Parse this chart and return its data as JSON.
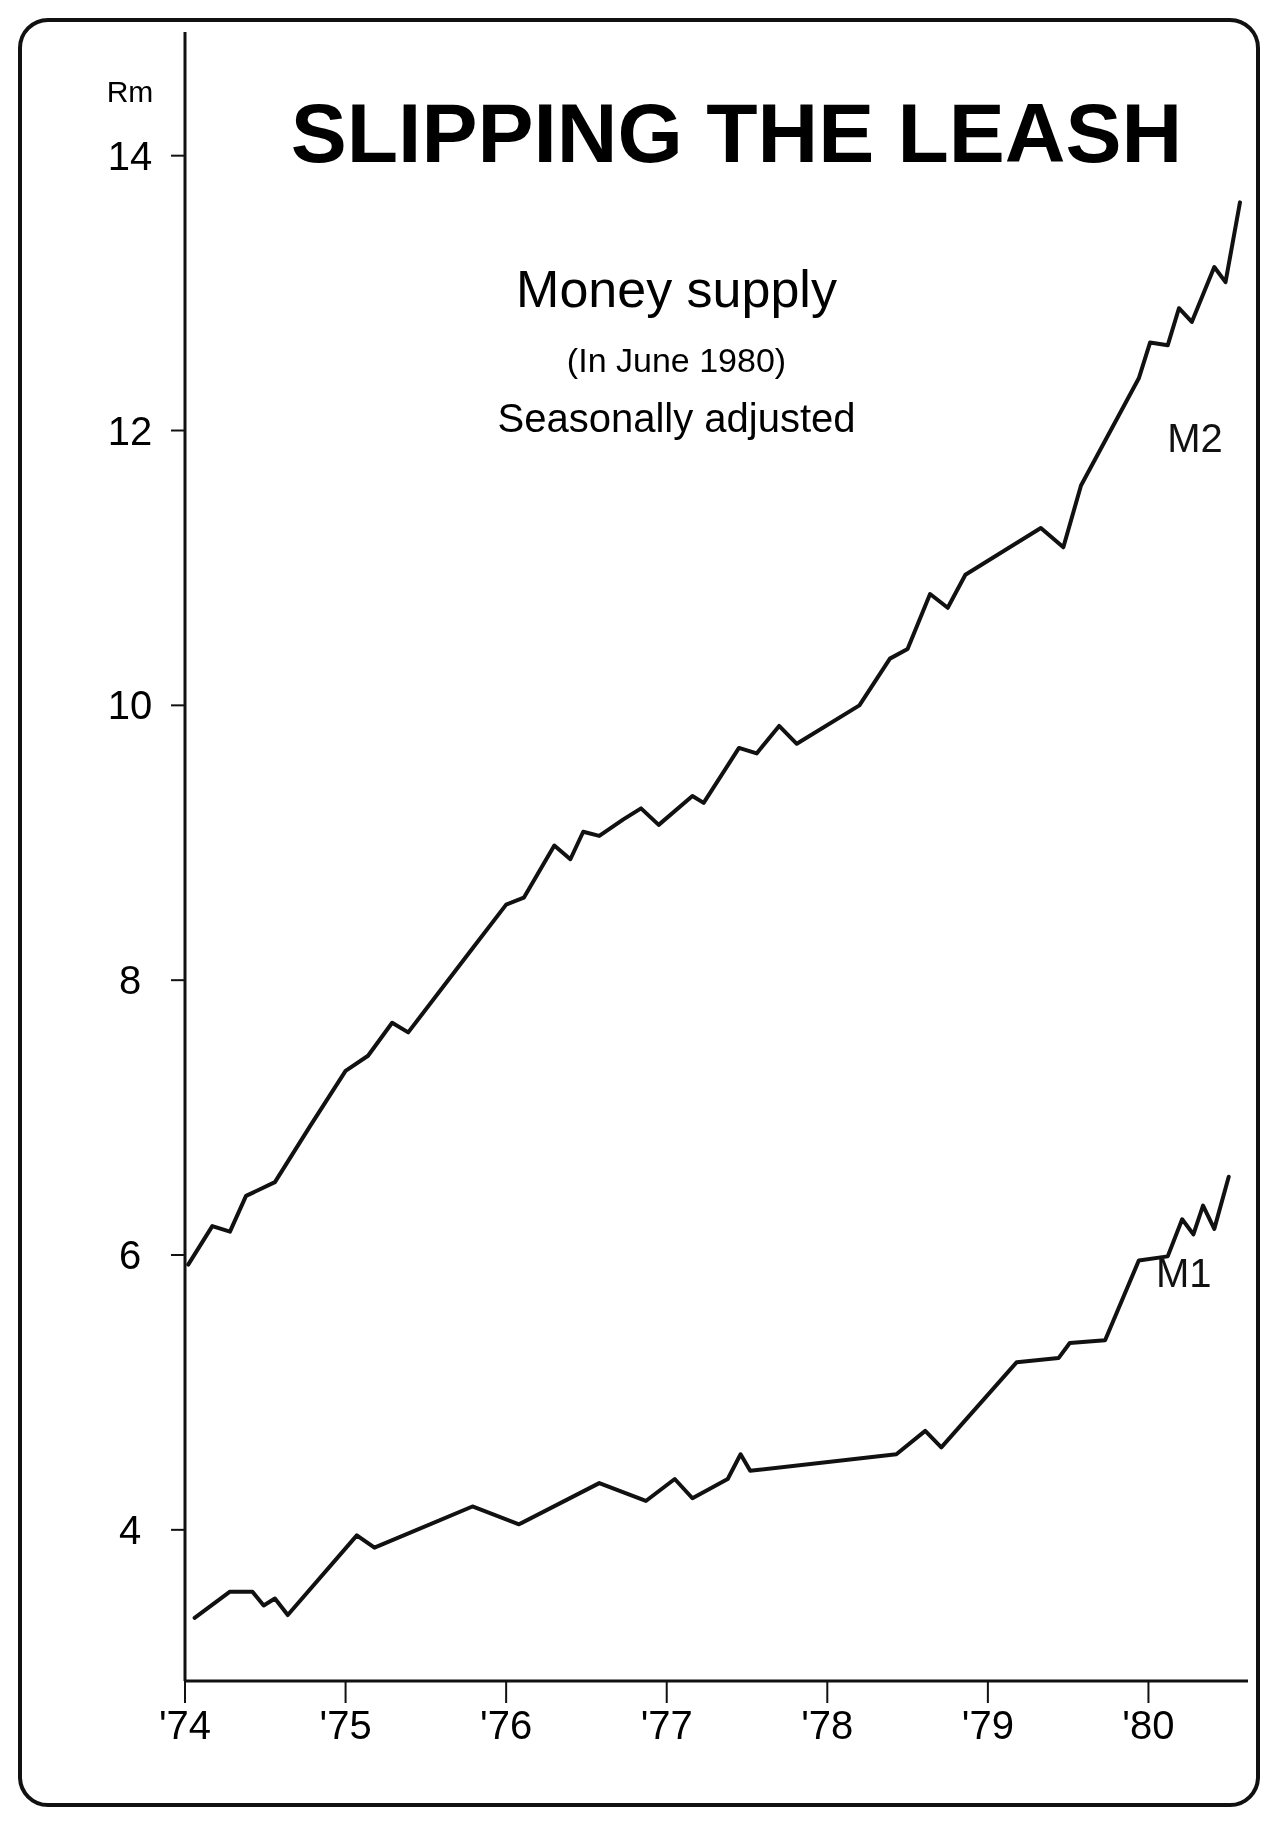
{
  "chart_data": {
    "type": "line",
    "title": "SLIPPING THE LEASH",
    "subtitle": "Money supply",
    "ylabel": "Rm",
    "annotations": [
      "(In June 1980)",
      "Seasonally adjusted"
    ],
    "xlim": [
      1974,
      1980.62
    ],
    "xticks": [
      {
        "value": 1974,
        "label": "'74"
      },
      {
        "value": 1975,
        "label": "'75"
      },
      {
        "value": 1976,
        "label": "'76"
      },
      {
        "value": 1977,
        "label": "'77"
      },
      {
        "value": 1978,
        "label": "'78"
      },
      {
        "value": 1979,
        "label": "'79"
      },
      {
        "value": 1980,
        "label": "'80"
      }
    ],
    "ylim": [
      2.9,
      14.9
    ],
    "yticks": [
      4,
      6,
      8,
      10,
      12,
      14
    ],
    "grid": false,
    "marker": "none",
    "line_style": "solid",
    "series": [
      {
        "name": "M2",
        "color": "#111111",
        "x": [
          1974.02,
          1974.17,
          1974.28,
          1974.38,
          1974.56,
          1974.78,
          1975.0,
          1975.14,
          1975.29,
          1975.39,
          1975.79,
          1976.0,
          1976.11,
          1976.3,
          1976.4,
          1976.48,
          1976.58,
          1976.73,
          1976.84,
          1976.95,
          1977.16,
          1977.23,
          1977.45,
          1977.56,
          1977.7,
          1977.81,
          1978.2,
          1978.39,
          1978.5,
          1978.64,
          1978.75,
          1978.86,
          1979.33,
          1979.47,
          1979.58,
          1979.94,
          1980.01,
          1980.12,
          1980.19,
          1980.27,
          1980.41,
          1980.48,
          1980.57
        ],
        "values": [
          5.93,
          6.21,
          6.17,
          6.43,
          6.53,
          6.94,
          7.34,
          7.45,
          7.69,
          7.62,
          8.23,
          8.55,
          8.6,
          8.98,
          8.88,
          9.08,
          9.05,
          9.17,
          9.25,
          9.13,
          9.34,
          9.29,
          9.69,
          9.65,
          9.85,
          9.72,
          10.0,
          10.34,
          10.41,
          10.81,
          10.71,
          10.95,
          11.29,
          11.15,
          11.6,
          12.38,
          12.64,
          12.62,
          12.89,
          12.79,
          13.19,
          13.08,
          13.66
        ]
      },
      {
        "name": "M1",
        "color": "#111111",
        "x": [
          1974.06,
          1974.28,
          1974.42,
          1974.49,
          1974.56,
          1974.64,
          1975.07,
          1975.18,
          1975.79,
          1976.08,
          1976.58,
          1976.87,
          1977.05,
          1977.16,
          1977.38,
          1977.46,
          1977.52,
          1978.43,
          1978.61,
          1978.71,
          1979.18,
          1979.44,
          1979.51,
          1979.73,
          1979.94,
          1980.12,
          1980.21,
          1980.28,
          1980.34,
          1980.41,
          1980.5
        ],
        "values": [
          3.36,
          3.55,
          3.55,
          3.45,
          3.5,
          3.38,
          3.96,
          3.87,
          4.17,
          4.04,
          4.34,
          4.21,
          4.37,
          4.23,
          4.37,
          4.55,
          4.43,
          4.55,
          4.72,
          4.6,
          5.22,
          5.25,
          5.36,
          5.38,
          5.96,
          5.99,
          6.26,
          6.15,
          6.36,
          6.19,
          6.57
        ]
      }
    ]
  }
}
